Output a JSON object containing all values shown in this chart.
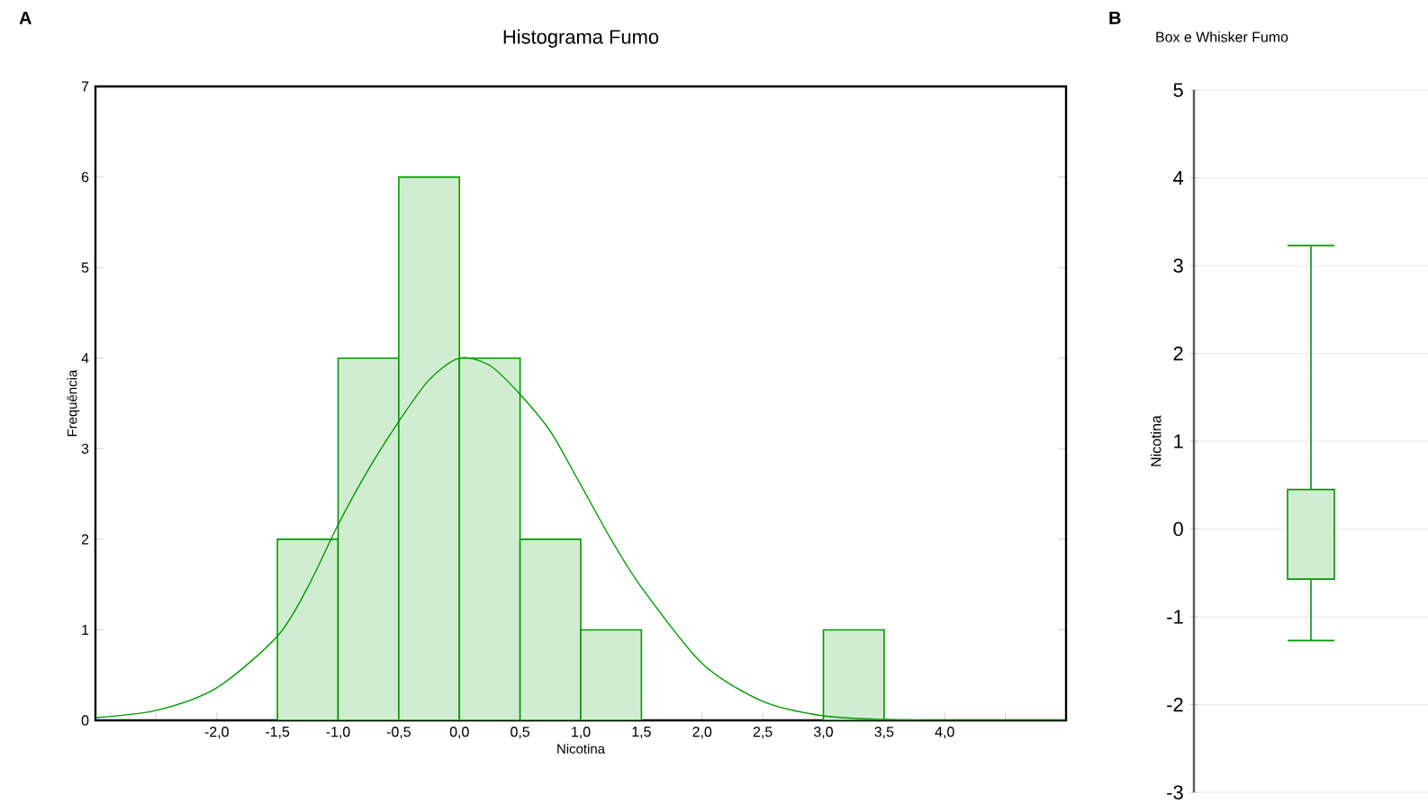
{
  "chart_data": [
    {
      "type": "histogram",
      "title": "Histograma Fumo",
      "xlabel": "Nicotina",
      "ylabel": "Frequência",
      "annotations": [
        "A"
      ],
      "color": "#009900",
      "bins": [
        -1.5,
        -1.0,
        -0.5,
        0.0,
        0.5,
        1.0,
        1.5,
        2.0,
        2.5,
        3.0,
        3.5
      ],
      "values": [
        2,
        4,
        6,
        4,
        2,
        1,
        0,
        0,
        0,
        1
      ],
      "series": [
        {
          "type": "line",
          "color": "#009900",
          "x": [
            -3.0,
            -2.5,
            -2.0,
            -1.5,
            -1.25,
            -1.0,
            -0.75,
            -0.5,
            -0.25,
            0.0,
            0.25,
            0.5,
            0.75,
            1.0,
            1.25,
            1.5,
            2.0,
            2.5,
            3.0,
            3.5,
            4.0,
            5.0
          ],
          "values": [
            0.03,
            0.11,
            0.36,
            0.93,
            1.47,
            2.16,
            2.77,
            3.3,
            3.76,
            4.0,
            3.92,
            3.6,
            3.19,
            2.6,
            2.0,
            1.47,
            0.63,
            0.21,
            0.05,
            0.01,
            0,
            0
          ]
        }
      ],
      "xlim": [
        -3,
        5
      ],
      "xticks": [
        {
          "value": -2.5,
          "label": null
        },
        {
          "value": -2,
          "label": "-2,0"
        },
        {
          "value": -1.5,
          "label": "-1,5"
        },
        {
          "value": -1,
          "label": "-1,0"
        },
        {
          "value": -0.5,
          "label": "-0,5"
        },
        {
          "value": 0,
          "label": "0,0"
        },
        {
          "value": 0.5,
          "label": "0,5"
        },
        {
          "value": 1,
          "label": "1,0"
        },
        {
          "value": 1.5,
          "label": "1,5"
        },
        {
          "value": 2,
          "label": "2,0"
        },
        {
          "value": 2.5,
          "label": "2,5"
        },
        {
          "value": 3,
          "label": "3,0"
        },
        {
          "value": 3.5,
          "label": "3,5"
        },
        {
          "value": 4,
          "label": "4,0"
        },
        {
          "value": 4.5,
          "label": null
        }
      ],
      "ylim": [
        0,
        7
      ],
      "yticks": [
        0,
        1,
        2,
        3,
        4,
        5,
        6,
        7
      ],
      "grid": false
    },
    {
      "type": "box",
      "title": "Box e Whisker Fumo",
      "ylabel": "Nicotina",
      "annotations": [
        "B"
      ],
      "color": "#009900",
      "categories": [
        null
      ],
      "boxes": [
        {
          "low": -1.27,
          "q1": -0.57,
          "q3": 0.45,
          "high": 3.23
        }
      ],
      "ylim": [
        -3,
        5
      ],
      "yticks": [
        -3,
        -2,
        -1,
        0,
        1,
        2,
        3,
        4,
        5
      ],
      "grid": "y"
    }
  ]
}
